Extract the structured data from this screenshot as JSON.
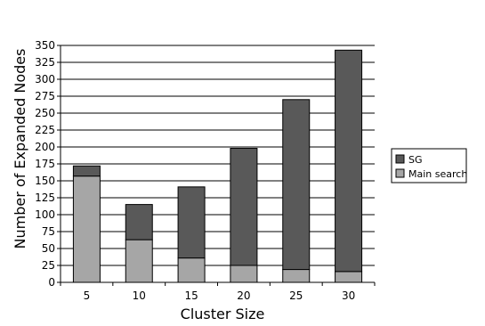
{
  "chart_data": {
    "type": "bar",
    "stacked": true,
    "categories": [
      "5",
      "10",
      "15",
      "20",
      "25",
      "30"
    ],
    "series": [
      {
        "name": "Main search",
        "values": [
          157,
          63,
          36,
          25,
          19,
          16
        ],
        "color": "#a6a6a6"
      },
      {
        "name": "SG",
        "values": [
          15,
          52,
          105,
          173,
          251,
          327
        ],
        "color": "#595959"
      }
    ],
    "xlabel": "Cluster Size",
    "ylabel": "Number of Expanded Nodes",
    "ylim": [
      0,
      350
    ],
    "yticks": [
      0,
      25,
      50,
      75,
      100,
      125,
      150,
      175,
      200,
      225,
      250,
      275,
      300,
      325,
      350
    ],
    "grid": true,
    "legend_position": "right",
    "legend_order": [
      "SG",
      "Main search"
    ]
  }
}
